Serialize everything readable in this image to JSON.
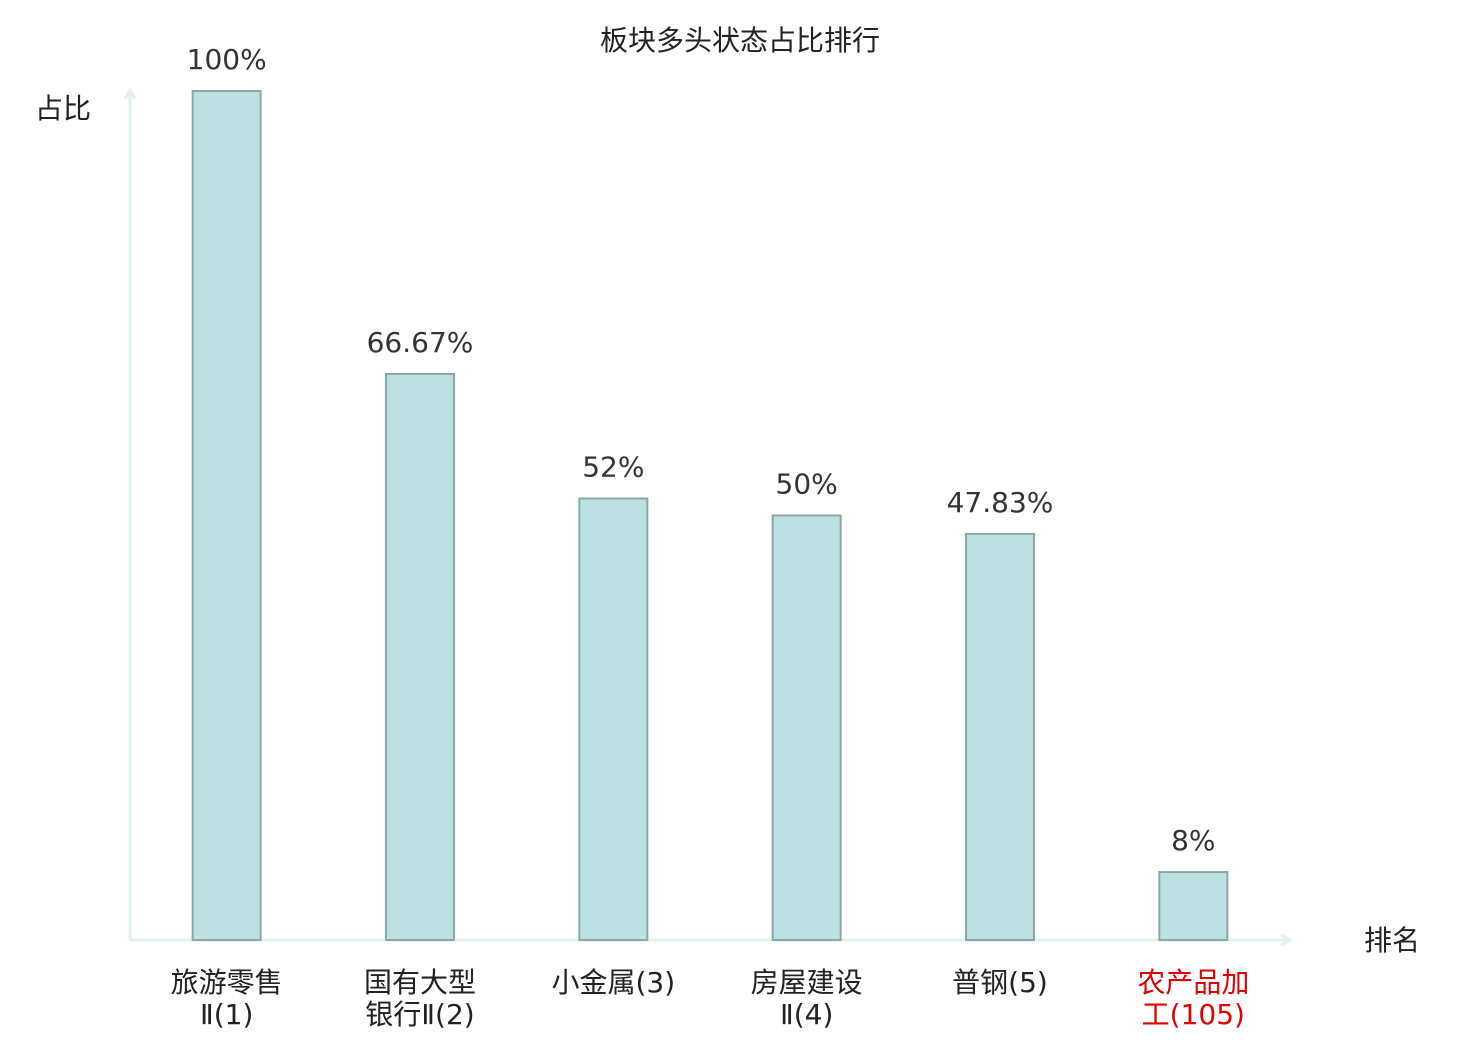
{
  "chart_data": {
    "type": "bar",
    "title": "板块多头状态占比排行",
    "y_axis_label": "占比",
    "x_axis_label": "排名",
    "categories": [
      [
        "旅游零售",
        "Ⅱ(1)"
      ],
      [
        "国有大型",
        "银行Ⅱ(2)"
      ],
      [
        "小金属(3)"
      ],
      [
        "房屋建设",
        "Ⅱ(4)"
      ],
      [
        "普钢(5)"
      ],
      [
        "农产品加",
        "工(105)"
      ]
    ],
    "values": [
      100,
      66.67,
      52,
      50,
      47.83,
      8
    ],
    "value_labels": [
      "100%",
      "66.67%",
      "52%",
      "50%",
      "47.83%",
      "8%"
    ],
    "color": "#bde0e3",
    "edge_color": "#8aa8aa",
    "highlight": {
      "index": 5,
      "color": "#e00000"
    },
    "ylim": [
      0,
      100
    ]
  }
}
